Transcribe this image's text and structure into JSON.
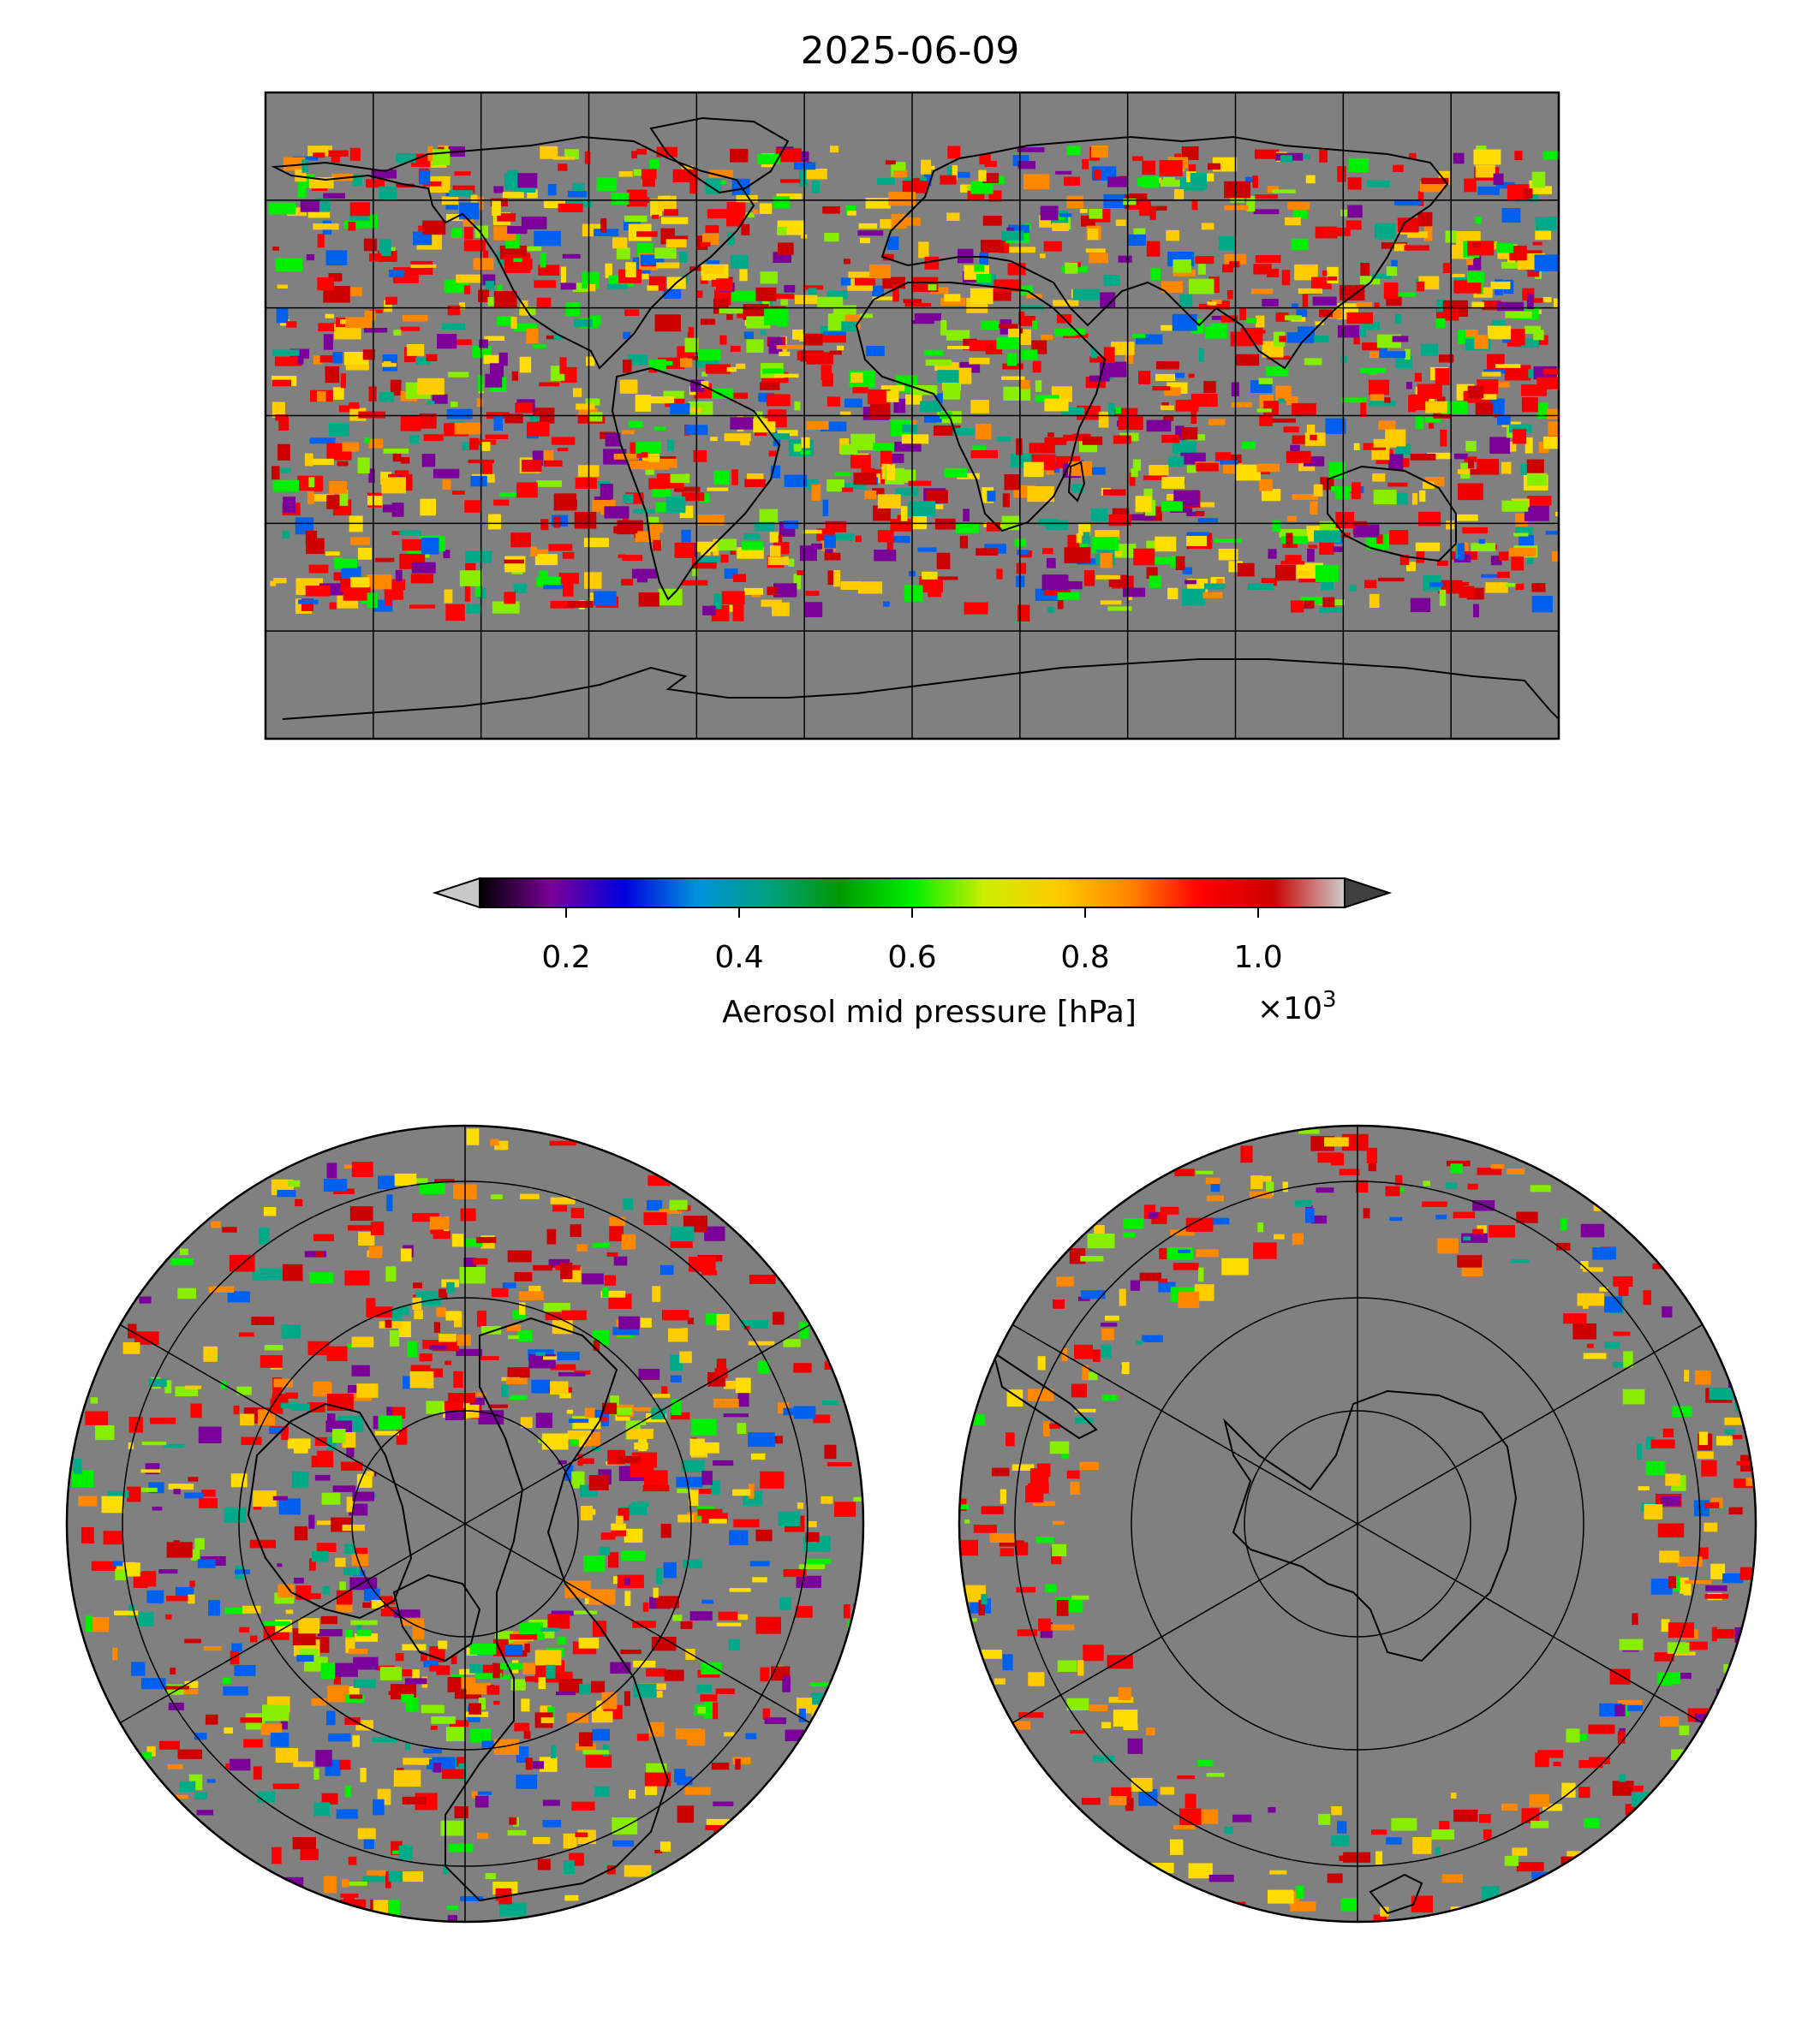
{
  "title": "2025-06-09",
  "colorbar": {
    "label": "Aerosol mid pressure [hPa]",
    "multiplier_base": "×10",
    "multiplier_exp": "3",
    "ticks": [
      "0.2",
      "0.4",
      "0.6",
      "0.8",
      "1.0"
    ],
    "tick_values": [
      0.2,
      0.4,
      0.6,
      0.8,
      1.0
    ],
    "range": [
      0.1,
      1.1
    ],
    "colors": [
      "#000000",
      "#7a0099",
      "#0000dd",
      "#0090dd",
      "#00a080",
      "#009900",
      "#00ee00",
      "#ccee00",
      "#ffcc00",
      "#ff8800",
      "#ff0000",
      "#cc0000",
      "#cccccc"
    ],
    "under_color": "#c8c8c8",
    "over_color": "#404040"
  },
  "map": {
    "background_color": "#808080",
    "projections": [
      "plate-carree",
      "north-polar-stereographic",
      "south-polar-stereographic"
    ]
  }
}
